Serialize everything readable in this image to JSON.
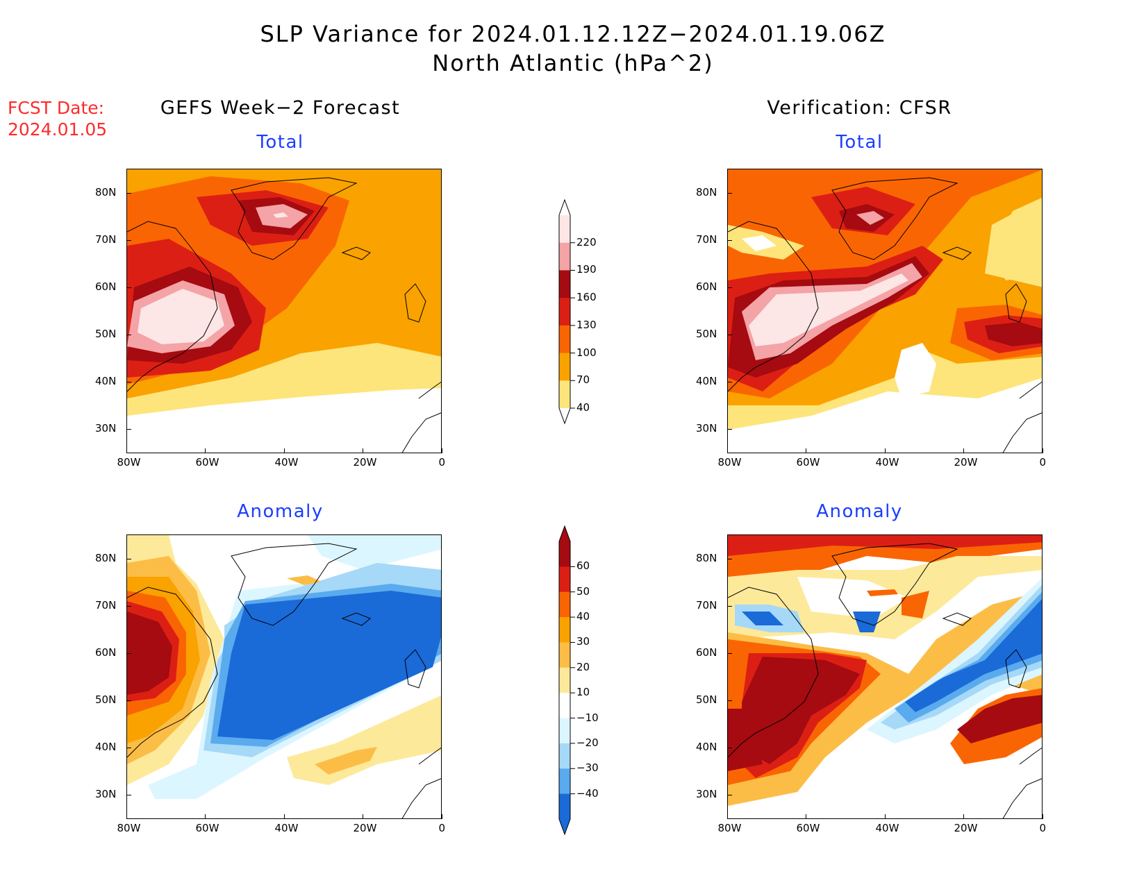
{
  "header": {
    "title_line1": "SLP Variance for 2024.01.12.12Z−2024.01.19.06Z",
    "title_line2": "North Atlantic (hPa^2)",
    "fcst_date_label": "FCST Date:",
    "fcst_date_value": "2024.01.05"
  },
  "columns": {
    "left_title": "GEFS Week−2 Forecast",
    "right_title": "Verification: CFSR"
  },
  "panels": {
    "total_label": "Total",
    "anomaly_label": "Anomaly"
  },
  "axes": {
    "lat_ticks": [
      "80N",
      "70N",
      "60N",
      "50N",
      "40N",
      "30N"
    ],
    "lon_ticks": [
      "80W",
      "60W",
      "40W",
      "20W",
      "0"
    ]
  },
  "colorbar_total": {
    "levels": [
      "220",
      "190",
      "160",
      "130",
      "100",
      "70",
      "40"
    ],
    "colors": [
      "#fde6e6",
      "#f4a3a6",
      "#a50b10",
      "#dc1f14",
      "#fa6503",
      "#faa200",
      "#fde57c"
    ]
  },
  "colorbar_anomaly": {
    "levels": [
      "60",
      "50",
      "40",
      "30",
      "20",
      "10",
      "−10",
      "−20",
      "−30",
      "−40"
    ],
    "colors": [
      "#a50b10",
      "#dc1f14",
      "#fa6503",
      "#faa200",
      "#fcbd47",
      "#fde99a",
      "#ffffff",
      "#dcf6ff",
      "#a6d8f8",
      "#5aaaee",
      "#1a6ad8"
    ]
  },
  "chart_data": [
    {
      "type": "heatmap",
      "title": "GEFS Week−2 Forecast — Total",
      "x_range": [
        "80W",
        "0"
      ],
      "y_range": [
        "25N",
        "85N"
      ],
      "description_values": {
        "max_center_labrador": 220,
        "max_center_greenland": 220
      }
    },
    {
      "type": "heatmap",
      "title": "Verification: CFSR — Total",
      "x_range": [
        "80W",
        "0"
      ],
      "y_range": [
        "25N",
        "85N"
      ]
    },
    {
      "type": "heatmap",
      "title": "GEFS Week−2 Forecast — Anomaly",
      "x_range": [
        "80W",
        "0"
      ],
      "y_range": [
        "25N",
        "85N"
      ]
    },
    {
      "type": "heatmap",
      "title": "Verification: CFSR — Anomaly",
      "x_range": [
        "80W",
        "0"
      ],
      "y_range": [
        "25N",
        "85N"
      ]
    }
  ]
}
